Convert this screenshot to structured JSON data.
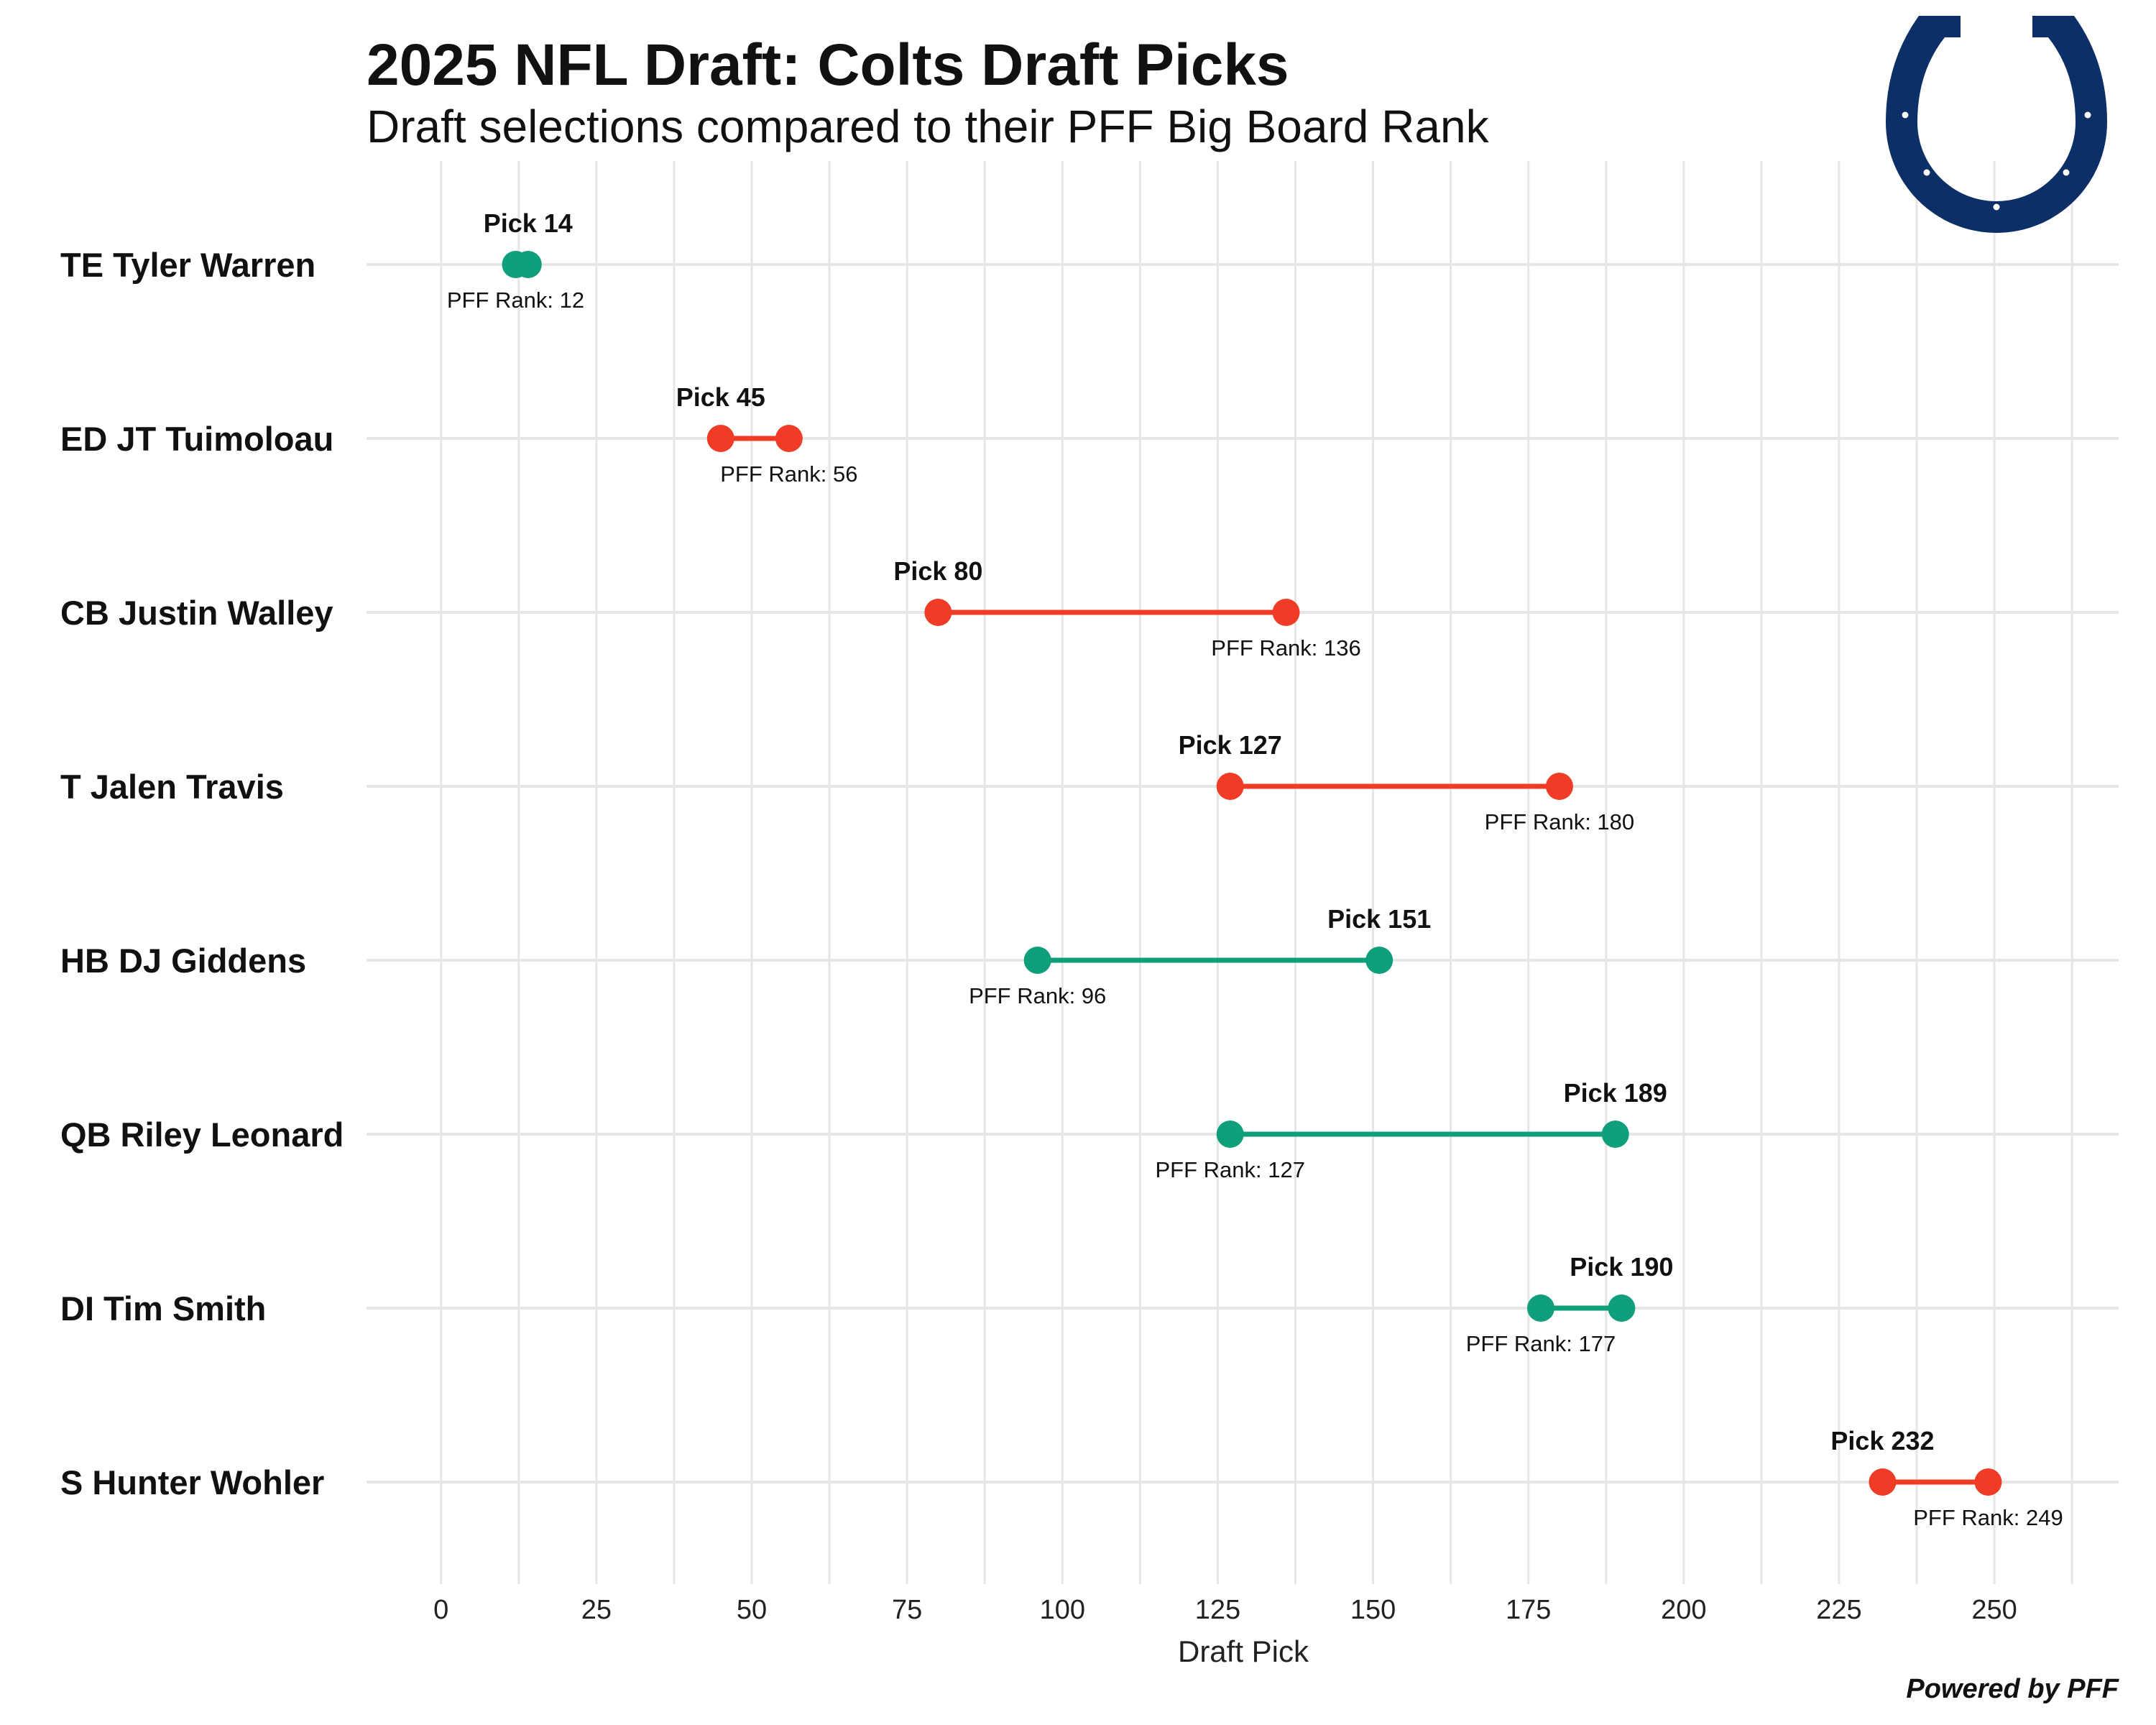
{
  "chart_data": {
    "type": "dumbbell",
    "title": "2025 NFL Draft: Colts Draft Picks",
    "subtitle": "Draft selections compared to their PFF Big Board Rank",
    "xlabel": "Draft Pick",
    "ylabel": "",
    "xlim": [
      -12,
      270
    ],
    "xticks": [
      0,
      25,
      50,
      75,
      100,
      125,
      150,
      175,
      200,
      225,
      250
    ],
    "grid": true,
    "source": "Powered by PFF",
    "colors": {
      "value": "#0f9f7b",
      "reach": "#f03c26",
      "grid": "#e6e6e6",
      "logo": "#0b2f66"
    },
    "players": [
      {
        "label": "TE Tyler Warren",
        "pick": 14,
        "pff_rank": 12,
        "status": "value",
        "pick_text": "Pick 14",
        "rank_text": "PFF Rank: 12"
      },
      {
        "label": "ED JT Tuimoloau",
        "pick": 45,
        "pff_rank": 56,
        "status": "reach",
        "pick_text": "Pick 45",
        "rank_text": "PFF Rank: 56"
      },
      {
        "label": "CB Justin Walley",
        "pick": 80,
        "pff_rank": 136,
        "status": "reach",
        "pick_text": "Pick 80",
        "rank_text": "PFF Rank: 136"
      },
      {
        "label": "T Jalen Travis",
        "pick": 127,
        "pff_rank": 180,
        "status": "reach",
        "pick_text": "Pick 127",
        "rank_text": "PFF Rank: 180"
      },
      {
        "label": "HB DJ Giddens",
        "pick": 151,
        "pff_rank": 96,
        "status": "value",
        "pick_text": "Pick 151",
        "rank_text": "PFF Rank: 96"
      },
      {
        "label": "QB Riley Leonard",
        "pick": 189,
        "pff_rank": 127,
        "status": "value",
        "pick_text": "Pick 189",
        "rank_text": "PFF Rank: 127"
      },
      {
        "label": "DI Tim Smith",
        "pick": 190,
        "pff_rank": 177,
        "status": "value",
        "pick_text": "Pick 190",
        "rank_text": "PFF Rank: 177"
      },
      {
        "label": "S Hunter Wohler",
        "pick": 232,
        "pff_rank": 249,
        "status": "reach",
        "pick_text": "Pick 232",
        "rank_text": "PFF Rank: 249"
      }
    ]
  },
  "logo": {
    "name": "Colts horseshoe"
  }
}
